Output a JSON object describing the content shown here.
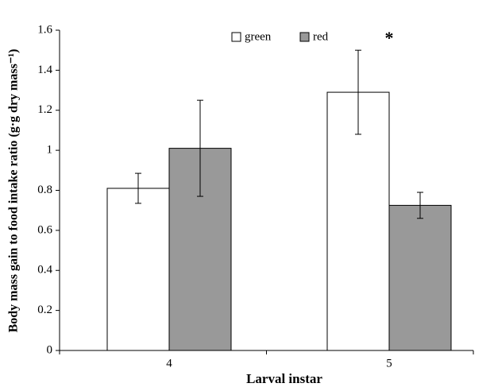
{
  "chart_data": {
    "type": "bar",
    "xlabel": "Larval instar",
    "ylabel": "Body mass gain to food intake ratio (g·g dry mass⁻¹)",
    "categories": [
      "4",
      "5"
    ],
    "series": [
      {
        "name": "green",
        "color": "#ffffff",
        "values": [
          0.81,
          1.29
        ],
        "errors": [
          0.075,
          0.21
        ]
      },
      {
        "name": "red",
        "color": "#999999",
        "values": [
          1.01,
          0.725
        ],
        "errors": [
          0.24,
          0.065
        ]
      }
    ],
    "annotations": [
      "*"
    ],
    "ylim": [
      0,
      1.6
    ],
    "yticks": [
      0,
      0.2,
      0.4,
      0.6,
      0.8,
      1,
      1.2,
      1.4,
      1.6
    ],
    "legend": "top"
  }
}
